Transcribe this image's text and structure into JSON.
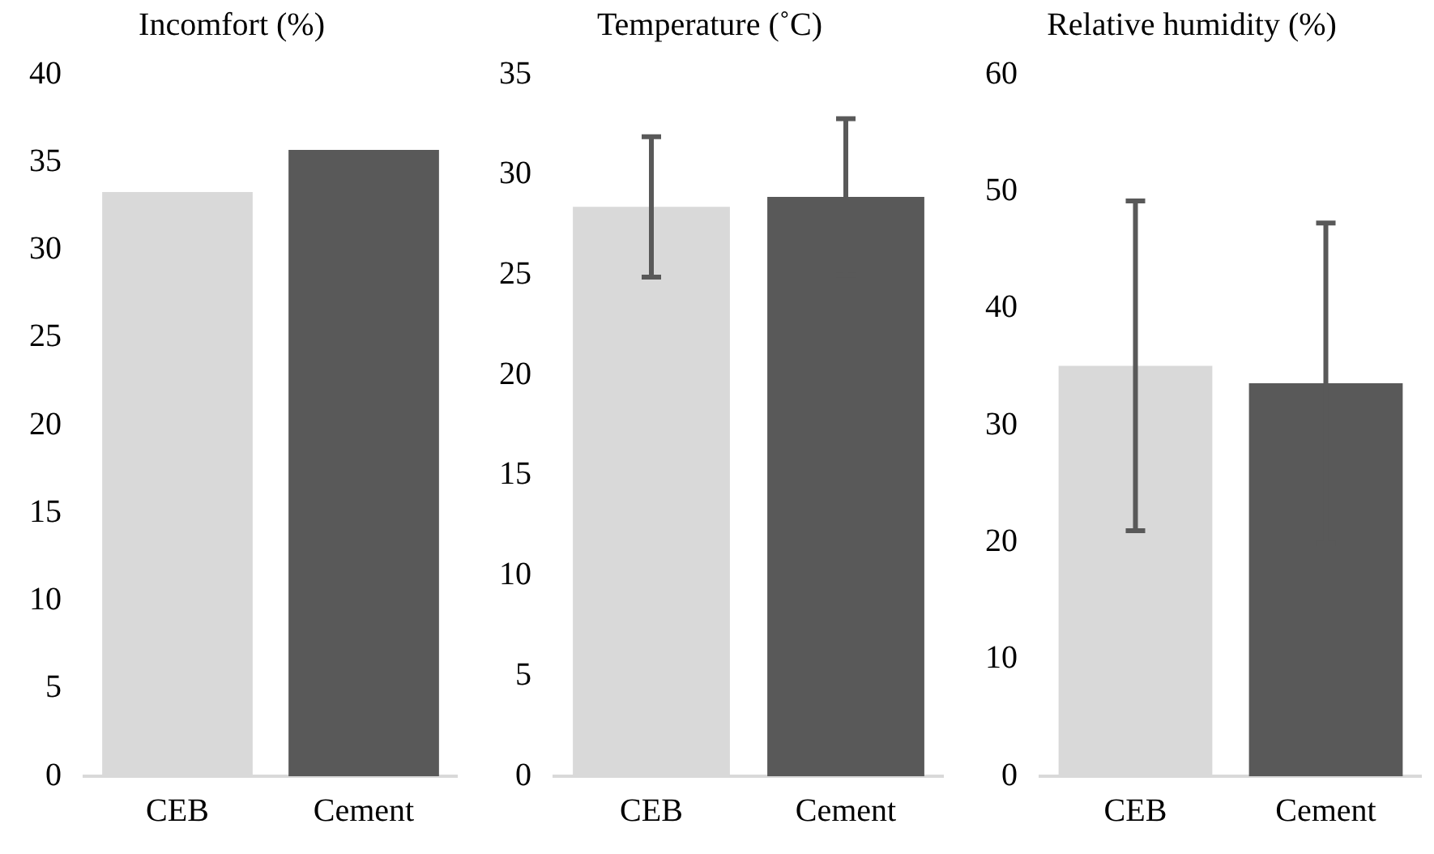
{
  "chart_data": [
    {
      "type": "bar",
      "title": "Incomfort (%)",
      "categories": [
        "CEB",
        "Cement"
      ],
      "values": [
        33.3,
        35.7
      ],
      "colors": [
        "#d9d9d9",
        "#595959"
      ],
      "ylim": [
        0,
        40
      ],
      "yticks": [
        0,
        5,
        10,
        15,
        20,
        25,
        30,
        35,
        40
      ],
      "grid": false
    },
    {
      "type": "bar",
      "title": "Temperature (˚C)",
      "categories": [
        "CEB",
        "Cement"
      ],
      "values": [
        28.4,
        28.9
      ],
      "errors": [
        3.5,
        3.9
      ],
      "colors": [
        "#d9d9d9",
        "#595959"
      ],
      "ylim": [
        0,
        35
      ],
      "yticks": [
        0,
        5,
        10,
        15,
        20,
        25,
        30,
        35
      ],
      "grid": false
    },
    {
      "type": "bar",
      "title": "Relative humidity (%)",
      "categories": [
        "CEB",
        "Cement"
      ],
      "values": [
        35.1,
        33.6
      ],
      "errors": [
        14.1,
        13.7
      ],
      "colors": [
        "#d9d9d9",
        "#595959"
      ],
      "ylim": [
        0,
        60
      ],
      "yticks": [
        0,
        10,
        20,
        30,
        40,
        50,
        60
      ],
      "grid": false
    }
  ]
}
